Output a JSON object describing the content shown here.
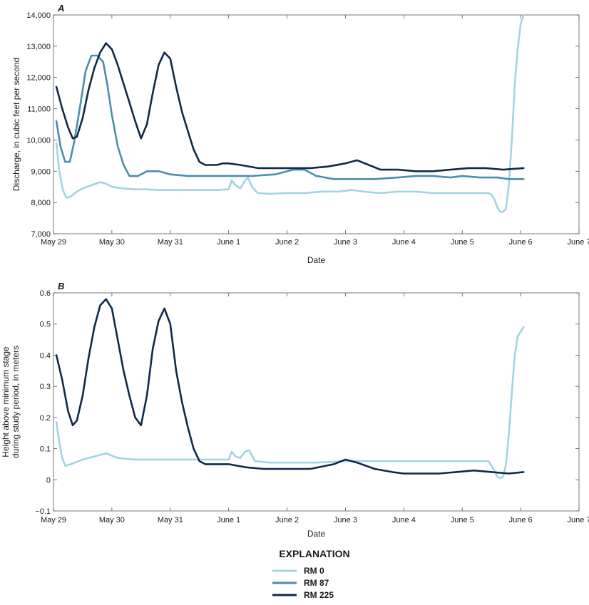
{
  "legend": {
    "title": "EXPLANATION",
    "entries": [
      {
        "label": "RM 0",
        "color": "#a3d4e1"
      },
      {
        "label": "RM 87",
        "color": "#4a8ead"
      },
      {
        "label": "RM 225",
        "color": "#0f2a47"
      }
    ]
  },
  "chart_data": [
    {
      "type": "line",
      "panel_label": "A",
      "xlabel": "Date",
      "ylabel": "Discharge, in cubic feet per second",
      "x_tick_labels": [
        "May 29",
        "May 30",
        "May 31",
        "June 1",
        "June 2",
        "June 3",
        "June 4",
        "June 5",
        "June 6",
        "June 7"
      ],
      "xlim_days": [
        0,
        9
      ],
      "ylim": [
        7000,
        14000
      ],
      "y_ticks": [
        7000,
        8000,
        9000,
        10000,
        11000,
        12000,
        13000,
        14000
      ],
      "y_tick_labels": [
        "7,000",
        "8,000",
        "9,000",
        "10,000",
        "11,000",
        "12,000",
        "13,000",
        "14,000"
      ],
      "series": [
        {
          "name": "RM 0",
          "color": "#a3d4e1",
          "x": [
            0.05,
            0.1,
            0.16,
            0.22,
            0.3,
            0.4,
            0.5,
            0.65,
            0.8,
            0.9,
            1.0,
            1.2,
            1.4,
            1.6,
            1.8,
            2.0,
            2.2,
            2.4,
            2.6,
            2.8,
            3.0,
            3.05,
            3.12,
            3.2,
            3.28,
            3.33,
            3.4,
            3.5,
            3.7,
            4.0,
            4.3,
            4.6,
            4.9,
            5.1,
            5.3,
            5.6,
            5.9,
            6.2,
            6.5,
            6.8,
            7.0,
            7.2,
            7.35,
            7.45,
            7.5,
            7.55,
            7.6,
            7.65,
            7.7,
            7.75,
            7.8,
            7.85,
            7.9,
            7.95,
            8.0,
            8.05
          ],
          "values": [
            9900,
            9000,
            8400,
            8150,
            8200,
            8350,
            8450,
            8550,
            8650,
            8600,
            8500,
            8450,
            8420,
            8420,
            8400,
            8400,
            8400,
            8400,
            8400,
            8400,
            8420,
            8700,
            8550,
            8450,
            8700,
            8800,
            8500,
            8300,
            8280,
            8300,
            8300,
            8350,
            8350,
            8400,
            8350,
            8300,
            8350,
            8350,
            8300,
            8300,
            8300,
            8300,
            8300,
            8300,
            8250,
            8100,
            7850,
            7700,
            7700,
            7800,
            8600,
            10000,
            11800,
            12900,
            13700,
            14000
          ]
        },
        {
          "name": "RM 87",
          "color": "#4a8ead",
          "x": [
            0.05,
            0.12,
            0.2,
            0.28,
            0.35,
            0.45,
            0.55,
            0.65,
            0.75,
            0.85,
            0.92,
            1.0,
            1.1,
            1.2,
            1.3,
            1.45,
            1.6,
            1.8,
            2.0,
            2.3,
            2.6,
            3.0,
            3.4,
            3.8,
            4.1,
            4.3,
            4.5,
            4.8,
            5.1,
            5.5,
            5.9,
            6.2,
            6.5,
            6.8,
            7.0,
            7.3,
            7.6,
            7.8,
            8.05
          ],
          "values": [
            10600,
            9800,
            9300,
            9300,
            9900,
            11000,
            12200,
            12700,
            12700,
            12500,
            11800,
            10800,
            9800,
            9200,
            8850,
            8850,
            9000,
            9000,
            8900,
            8850,
            8850,
            8850,
            8850,
            8900,
            9050,
            9050,
            8850,
            8750,
            8750,
            8750,
            8800,
            8850,
            8850,
            8800,
            8850,
            8800,
            8800,
            8750,
            8750
          ]
        },
        {
          "name": "RM 225",
          "color": "#0f2a47",
          "x": [
            0.05,
            0.15,
            0.25,
            0.33,
            0.4,
            0.5,
            0.6,
            0.7,
            0.8,
            0.9,
            1.0,
            1.1,
            1.2,
            1.3,
            1.4,
            1.5,
            1.6,
            1.7,
            1.8,
            1.9,
            2.0,
            2.1,
            2.2,
            2.3,
            2.4,
            2.5,
            2.6,
            2.7,
            2.8,
            2.9,
            3.0,
            3.2,
            3.5,
            3.8,
            4.1,
            4.4,
            4.7,
            5.0,
            5.2,
            5.4,
            5.6,
            5.9,
            6.2,
            6.5,
            6.8,
            7.1,
            7.4,
            7.7,
            8.05
          ],
          "values": [
            11700,
            11000,
            10400,
            10050,
            10100,
            10700,
            11600,
            12300,
            12800,
            13100,
            12900,
            12400,
            11800,
            11200,
            10600,
            10050,
            10500,
            11500,
            12400,
            12800,
            12600,
            11700,
            10900,
            10300,
            9700,
            9300,
            9200,
            9200,
            9200,
            9250,
            9250,
            9200,
            9100,
            9100,
            9100,
            9100,
            9150,
            9250,
            9350,
            9200,
            9050,
            9050,
            9000,
            9000,
            9050,
            9100,
            9100,
            9050,
            9100
          ]
        }
      ]
    },
    {
      "type": "line",
      "panel_label": "B",
      "xlabel": "Date",
      "ylabel_lines": [
        "Height above minimum stage",
        "during study period, in meters"
      ],
      "x_tick_labels": [
        "May 29",
        "May 30",
        "May 31",
        "June 1",
        "June 2",
        "June 3",
        "June 4",
        "June 5",
        "June 6",
        "June 7"
      ],
      "xlim_days": [
        0,
        9
      ],
      "ylim": [
        -0.1,
        0.6
      ],
      "y_ticks": [
        -0.1,
        0,
        0.1,
        0.2,
        0.3,
        0.4,
        0.5,
        0.6
      ],
      "y_tick_labels": [
        "−0.1",
        "0",
        "0.1",
        "0.2",
        "0.3",
        "0.4",
        "0.5",
        "0.6"
      ],
      "series": [
        {
          "name": "RM 0",
          "color": "#a3d4e1",
          "x": [
            0.05,
            0.1,
            0.15,
            0.2,
            0.3,
            0.5,
            0.7,
            0.9,
            1.1,
            1.4,
            1.8,
            2.2,
            2.6,
            3.0,
            3.05,
            3.12,
            3.2,
            3.28,
            3.35,
            3.45,
            3.7,
            4.0,
            4.5,
            5.0,
            5.5,
            6.0,
            6.5,
            7.0,
            7.3,
            7.45,
            7.55,
            7.6,
            7.65,
            7.7,
            7.75,
            7.8,
            7.85,
            7.9,
            7.95,
            8.05
          ],
          "values": [
            0.185,
            0.12,
            0.07,
            0.045,
            0.05,
            0.065,
            0.075,
            0.085,
            0.07,
            0.065,
            0.065,
            0.065,
            0.065,
            0.065,
            0.09,
            0.075,
            0.07,
            0.09,
            0.095,
            0.06,
            0.055,
            0.055,
            0.055,
            0.06,
            0.06,
            0.06,
            0.06,
            0.06,
            0.06,
            0.06,
            0.03,
            0.01,
            0.005,
            0.01,
            0.05,
            0.15,
            0.28,
            0.4,
            0.46,
            0.49
          ]
        },
        {
          "name": "RM 225",
          "color": "#0f2a47",
          "x": [
            0.05,
            0.15,
            0.25,
            0.33,
            0.4,
            0.5,
            0.6,
            0.7,
            0.8,
            0.9,
            1.0,
            1.1,
            1.2,
            1.3,
            1.4,
            1.5,
            1.6,
            1.7,
            1.8,
            1.9,
            2.0,
            2.1,
            2.2,
            2.3,
            2.4,
            2.5,
            2.6,
            2.7,
            3.0,
            3.3,
            3.6,
            4.0,
            4.4,
            4.8,
            5.0,
            5.2,
            5.5,
            5.8,
            6.0,
            6.3,
            6.6,
            6.9,
            7.2,
            7.5,
            7.8,
            8.05
          ],
          "values": [
            0.4,
            0.32,
            0.22,
            0.175,
            0.19,
            0.27,
            0.39,
            0.49,
            0.56,
            0.58,
            0.55,
            0.45,
            0.35,
            0.27,
            0.2,
            0.175,
            0.27,
            0.42,
            0.51,
            0.55,
            0.5,
            0.35,
            0.25,
            0.17,
            0.1,
            0.06,
            0.05,
            0.05,
            0.05,
            0.04,
            0.035,
            0.035,
            0.035,
            0.05,
            0.065,
            0.055,
            0.035,
            0.025,
            0.02,
            0.02,
            0.02,
            0.025,
            0.03,
            0.025,
            0.02,
            0.025
          ]
        }
      ]
    }
  ]
}
